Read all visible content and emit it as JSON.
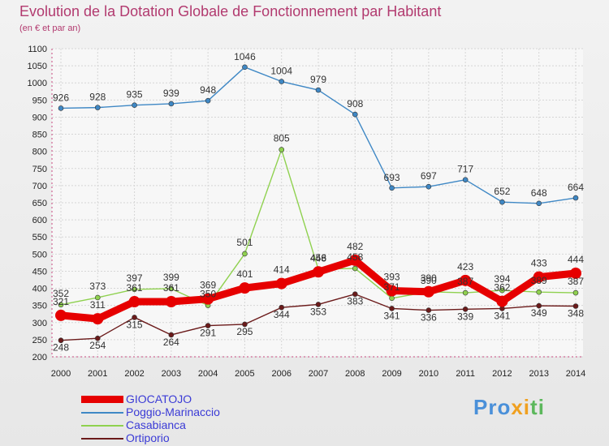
{
  "header": {
    "title": "Evolution de la Dotation Globale de Fonctionnement par Habitant",
    "subtitle": "(en € et par an)"
  },
  "logo": {
    "text": "Proxiti",
    "part1": "Pro",
    "part2": "xi",
    "part3": "ti"
  },
  "chart_data": {
    "type": "line",
    "title": "Evolution de la Dotation Globale de Fonctionnement par Habitant",
    "subtitle": "(en € et par an)",
    "x": [
      2000,
      2001,
      2002,
      2003,
      2004,
      2005,
      2006,
      2007,
      2008,
      2009,
      2010,
      2011,
      2012,
      2013,
      2014
    ],
    "ylim": [
      200,
      1100
    ],
    "ytick_step": 50,
    "grid": true,
    "legend_position": "bottom-left",
    "series": [
      {
        "name": "GIOCATOJO",
        "color": "#e60000",
        "emphasis": true,
        "values": [
          321,
          311,
          361,
          361,
          369,
          401,
          414,
          448,
          482,
          393,
          390,
          423,
          362,
          433,
          444
        ],
        "labels": [
          "321",
          "311",
          "361",
          "361",
          "369",
          "401",
          "414",
          "448",
          "482",
          "393",
          "390",
          "423",
          "362",
          "433",
          "444"
        ]
      },
      {
        "name": "Poggio-Marinaccio",
        "color": "#3f88c5",
        "emphasis": false,
        "values": [
          926,
          928,
          935,
          939,
          948,
          1046,
          1004,
          979,
          908,
          693,
          697,
          717,
          652,
          648,
          664
        ],
        "labels": [
          "926",
          "928",
          "935",
          "939",
          "948",
          "1046",
          "1004",
          "979",
          "908",
          "693",
          "697",
          "717",
          "652",
          "648",
          "664"
        ]
      },
      {
        "name": "Casabianca",
        "color": "#8fd14f",
        "emphasis": false,
        "values": [
          352,
          373,
          397,
          399,
          350,
          501,
          805,
          456,
          458,
          371,
          390,
          387,
          394,
          389,
          387
        ],
        "labels": [
          "352",
          "373",
          "397",
          "399",
          "350",
          "501",
          "805",
          "456",
          "458",
          "371",
          "390",
          "387",
          "394",
          "389",
          "387"
        ]
      },
      {
        "name": "Ortiporio",
        "color": "#6b1a1a",
        "emphasis": false,
        "values": [
          248,
          254,
          315,
          264,
          291,
          295,
          344,
          353,
          383,
          341,
          336,
          339,
          341,
          349,
          348
        ],
        "labels": [
          "248",
          "254",
          "315",
          "264",
          "291",
          "295",
          "344",
          "353",
          "383",
          "341",
          "336",
          "339",
          "341",
          "349",
          "348"
        ]
      }
    ]
  }
}
